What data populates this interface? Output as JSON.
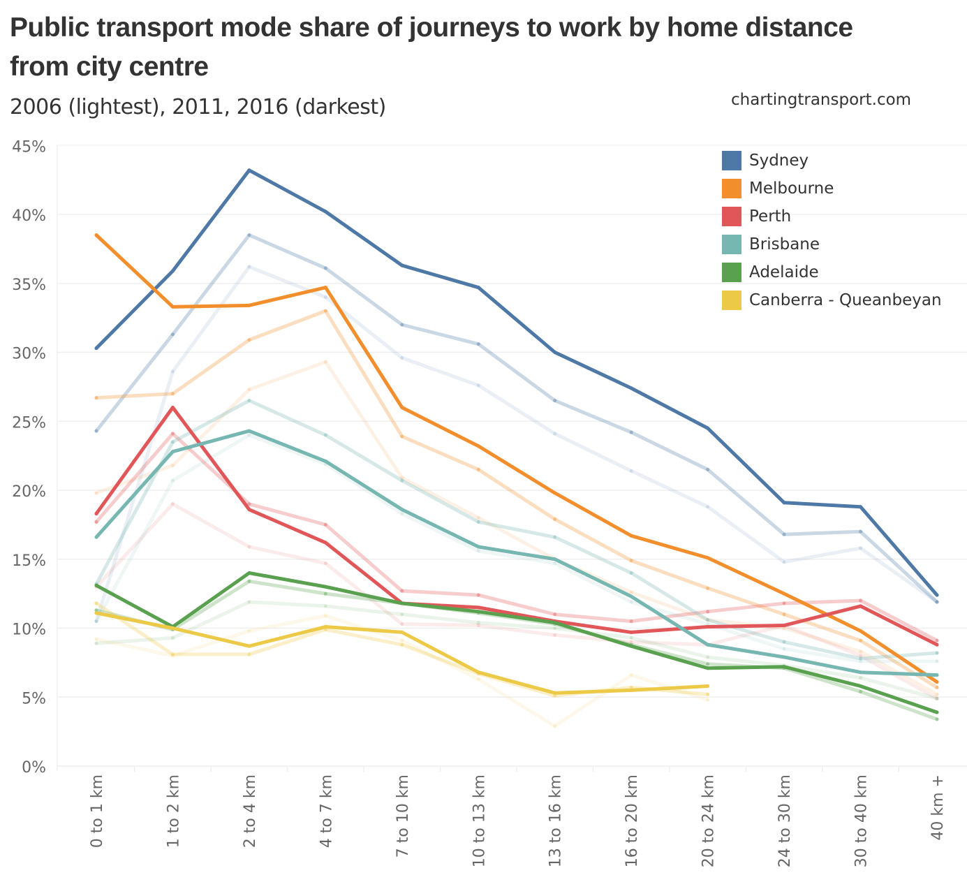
{
  "header": {
    "title": "Public transport mode share of journeys to work by home distance from city centre",
    "subtitle": "2006 (lightest), 2011, 2016 (darkest)",
    "source": "chartingtransport.com"
  },
  "chart_data": {
    "type": "line",
    "title": "Public transport mode share of journeys to work by home distance from city centre",
    "subtitle": "2006 (lightest), 2011, 2016 (darkest)",
    "xlabel": "",
    "ylabel": "",
    "ylim": [
      0,
      45
    ],
    "yticks": [
      "0%",
      "5%",
      "10%",
      "15%",
      "20%",
      "25%",
      "30%",
      "35%",
      "40%",
      "45%"
    ],
    "ytick_values": [
      0,
      5,
      10,
      15,
      20,
      25,
      30,
      35,
      40,
      45
    ],
    "grid": true,
    "legend_position": "top-right",
    "categories": [
      "0 to 1 km",
      "1 to 2 km",
      "2 to 4 km",
      "4 to 7 km",
      "7 to 10 km",
      "10 to 13 km",
      "13 to 16 km",
      "16 to 20 km",
      "20 to 24 km",
      "24 to 30 km",
      "30 to 40 km",
      "40 km +"
    ],
    "years": [
      "2006",
      "2011",
      "2016"
    ],
    "year_opacity": {
      "2006": 0.12,
      "2011": 0.3,
      "2016": 1.0
    },
    "series": [
      {
        "name": "Sydney",
        "color": "#4e79a7",
        "years": {
          "2006": [
            10.5,
            28.6,
            36.2,
            34.0,
            29.6,
            27.6,
            24.1,
            21.4,
            18.8,
            14.8,
            15.8,
            11.9
          ],
          "2011": [
            24.3,
            31.3,
            38.5,
            36.1,
            32.0,
            30.6,
            26.5,
            24.2,
            21.5,
            16.8,
            17.0,
            11.9
          ],
          "2016": [
            30.3,
            35.9,
            43.2,
            40.2,
            36.3,
            34.7,
            30.0,
            27.4,
            24.5,
            19.1,
            18.8,
            12.4
          ]
        }
      },
      {
        "name": "Melbourne",
        "color": "#f28e2b",
        "years": {
          "2006": [
            19.8,
            21.8,
            27.3,
            29.3,
            20.9,
            18.0,
            15.0,
            12.6,
            10.6,
            10.0,
            8.3,
            5.2
          ],
          "2011": [
            26.7,
            27.0,
            30.9,
            33.0,
            23.9,
            21.5,
            17.9,
            14.9,
            12.9,
            11.0,
            9.1,
            5.7
          ],
          "2016": [
            38.5,
            33.3,
            33.4,
            34.7,
            26.0,
            23.2,
            19.8,
            16.7,
            15.1,
            12.5,
            9.8,
            6.1
          ]
        }
      },
      {
        "name": "Perth",
        "color": "#e15759",
        "years": {
          "2006": [
            13.0,
            19.0,
            15.9,
            14.7,
            10.3,
            10.2,
            9.5,
            9.0,
            8.8,
            10.2,
            8.0,
            4.9
          ],
          "2011": [
            17.7,
            24.1,
            19.0,
            17.5,
            12.7,
            12.4,
            11.0,
            10.5,
            11.2,
            11.8,
            12.0,
            9.1
          ],
          "2016": [
            18.3,
            26.0,
            18.6,
            16.2,
            11.8,
            11.5,
            10.5,
            9.7,
            10.1,
            10.2,
            11.6,
            8.8
          ]
        }
      },
      {
        "name": "Brisbane",
        "color": "#76b7b2",
        "years": {
          "2006": [
            10.5,
            20.7,
            24.0,
            21.9,
            18.3,
            15.6,
            14.7,
            11.9,
            10.3,
            8.5,
            7.6,
            7.6
          ],
          "2011": [
            13.2,
            23.5,
            26.5,
            24.0,
            20.7,
            17.7,
            16.6,
            14.0,
            10.6,
            9.0,
            7.8,
            8.2
          ],
          "2016": [
            16.6,
            22.8,
            24.3,
            22.1,
            18.6,
            15.9,
            15.0,
            12.3,
            8.8,
            7.9,
            6.8,
            6.6
          ]
        }
      },
      {
        "name": "Adelaide",
        "color": "#59a14f",
        "years": {
          "2006": [
            8.9,
            9.3,
            11.9,
            11.6,
            11.0,
            10.4,
            10.0,
            9.3,
            7.9,
            7.3,
            6.4,
            4.9
          ],
          "2011": [
            11.3,
            9.9,
            13.4,
            12.5,
            11.8,
            11.1,
            10.3,
            8.8,
            7.4,
            7.1,
            5.4,
            3.4
          ],
          "2016": [
            13.1,
            10.1,
            14.0,
            13.0,
            11.8,
            11.2,
            10.4,
            8.7,
            7.1,
            7.2,
            5.8,
            3.9
          ]
        }
      },
      {
        "name": "Canberra - Queanbeyan",
        "color": "#edc948",
        "years": {
          "2006": [
            9.2,
            8.0,
            9.8,
            10.9,
            9.1,
            6.3,
            2.9,
            6.6,
            4.8,
            null,
            null,
            null
          ],
          "2011": [
            11.8,
            8.1,
            8.1,
            9.9,
            8.8,
            6.7,
            5.1,
            5.7,
            5.2,
            null,
            null,
            null
          ],
          "2016": [
            11.1,
            10.0,
            8.7,
            10.1,
            9.7,
            6.8,
            5.3,
            5.5,
            5.8,
            null,
            null,
            null
          ]
        }
      }
    ]
  }
}
